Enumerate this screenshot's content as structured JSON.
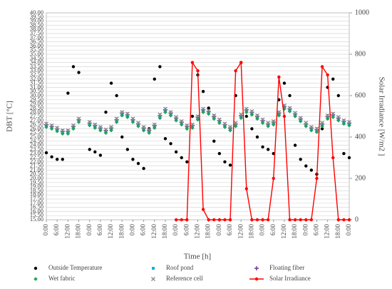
{
  "chart_data": {
    "type": "scatter",
    "ylabel": "DBT [°C]",
    "y2label": "Solar Irradiance  [W/m2 ]",
    "xlabel": "Time [h]",
    "x": [
      0,
      3,
      6,
      9,
      12,
      15,
      18,
      21,
      24,
      27,
      30,
      33,
      36,
      39,
      42,
      45,
      48,
      51,
      54,
      57,
      60,
      63,
      66,
      69,
      72,
      75,
      78,
      81,
      84,
      87,
      90,
      93,
      96,
      99,
      102,
      105,
      108,
      111,
      114,
      117,
      120,
      123,
      126,
      129,
      132,
      135,
      138,
      141,
      144,
      147,
      150,
      153,
      156,
      159,
      162,
      165,
      168
    ],
    "xlim": [
      0,
      168
    ],
    "xticks": [
      {
        "value": 0,
        "label": "0:00"
      },
      {
        "value": 6,
        "label": "6:00"
      },
      {
        "value": 12,
        "label": "12:00"
      },
      {
        "value": 18,
        "label": "18:00"
      },
      {
        "value": 24,
        "label": "0:00"
      },
      {
        "value": 30,
        "label": "6:00"
      },
      {
        "value": 36,
        "label": "12:00"
      },
      {
        "value": 42,
        "label": "18:00"
      },
      {
        "value": 48,
        "label": "0:00"
      },
      {
        "value": 54,
        "label": "6:00"
      },
      {
        "value": 60,
        "label": "12:00"
      },
      {
        "value": 66,
        "label": "18:00"
      },
      {
        "value": 72,
        "label": "0:00"
      },
      {
        "value": 78,
        "label": "6:00"
      },
      {
        "value": 84,
        "label": "12:00"
      },
      {
        "value": 90,
        "label": "18:00"
      },
      {
        "value": 96,
        "label": "0:00"
      },
      {
        "value": 102,
        "label": "6:00"
      },
      {
        "value": 108,
        "label": "12:00"
      },
      {
        "value": 114,
        "label": "18:00"
      },
      {
        "value": 120,
        "label": "0:00"
      },
      {
        "value": 126,
        "label": "6:00"
      },
      {
        "value": 132,
        "label": "12:00"
      },
      {
        "value": 138,
        "label": "18:00"
      },
      {
        "value": 144,
        "label": "0:00"
      },
      {
        "value": 150,
        "label": "6:00"
      },
      {
        "value": 156,
        "label": "12:00"
      },
      {
        "value": 162,
        "label": "18:00"
      },
      {
        "value": 168,
        "label": "0:00"
      }
    ],
    "ylim": [
      15,
      40
    ],
    "yticks": [
      {
        "value": 15,
        "label": "15.00"
      },
      {
        "value": 15.5,
        "label": "15.50"
      },
      {
        "value": 16,
        "label": "16.00"
      },
      {
        "value": 16.5,
        "label": "16.50"
      },
      {
        "value": 17,
        "label": "17.00"
      },
      {
        "value": 17.5,
        "label": "17.50"
      },
      {
        "value": 18,
        "label": "18.00"
      },
      {
        "value": 18.5,
        "label": "18.50"
      },
      {
        "value": 19,
        "label": "19.00"
      },
      {
        "value": 19.5,
        "label": "19.50"
      },
      {
        "value": 20,
        "label": "20.00"
      },
      {
        "value": 20.5,
        "label": "20.50"
      },
      {
        "value": 21,
        "label": "21.00"
      },
      {
        "value": 21.5,
        "label": "21.50"
      },
      {
        "value": 22,
        "label": "22.00"
      },
      {
        "value": 22.5,
        "label": "22.50"
      },
      {
        "value": 23,
        "label": "23.00"
      },
      {
        "value": 23.5,
        "label": "23.50"
      },
      {
        "value": 24,
        "label": "24.00"
      },
      {
        "value": 24.5,
        "label": "24.50"
      },
      {
        "value": 25,
        "label": "25.00"
      },
      {
        "value": 25.5,
        "label": "25.50"
      },
      {
        "value": 26,
        "label": "26.00"
      },
      {
        "value": 26.5,
        "label": "26.50"
      },
      {
        "value": 27,
        "label": "27.00"
      },
      {
        "value": 27.5,
        "label": "27.50"
      },
      {
        "value": 28,
        "label": "28.00"
      },
      {
        "value": 28.5,
        "label": "28.50"
      },
      {
        "value": 29,
        "label": "29.00"
      },
      {
        "value": 29.5,
        "label": "29.50"
      },
      {
        "value": 30,
        "label": "30.00"
      },
      {
        "value": 30.5,
        "label": "30.50"
      },
      {
        "value": 31,
        "label": "31.00"
      },
      {
        "value": 31.5,
        "label": "31.50"
      },
      {
        "value": 32,
        "label": "32.00"
      },
      {
        "value": 32.5,
        "label": "32.50"
      },
      {
        "value": 33,
        "label": "33.00"
      },
      {
        "value": 33.5,
        "label": "33.50"
      },
      {
        "value": 34,
        "label": "34.00"
      },
      {
        "value": 34.5,
        "label": "34.50"
      },
      {
        "value": 35,
        "label": "35.00"
      },
      {
        "value": 35.5,
        "label": "35.50"
      },
      {
        "value": 36,
        "label": "36.00"
      },
      {
        "value": 36.5,
        "label": "36.50"
      },
      {
        "value": 37,
        "label": "37.00"
      },
      {
        "value": 37.5,
        "label": "37.50"
      },
      {
        "value": 38,
        "label": "38.00"
      },
      {
        "value": 38.5,
        "label": "38.50"
      },
      {
        "value": 39,
        "label": "39.00"
      },
      {
        "value": 39.5,
        "label": "39.50"
      },
      {
        "value": 40,
        "label": "40.00"
      }
    ],
    "y2lim": [
      0,
      1000
    ],
    "y2ticks": [
      0,
      200,
      400,
      600,
      800,
      1000
    ],
    "grid": true,
    "series": [
      {
        "name": "Outside Temperature",
        "color": "#000000",
        "marker": "circle",
        "values": [
          23.1,
          22.6,
          22.3,
          22.3,
          30.3,
          33.5,
          32.8,
          null,
          23.5,
          23.2,
          22.8,
          28.0,
          31.5,
          30.0,
          25.0,
          23.5,
          22.3,
          21.8,
          21.2,
          26.0,
          32.0,
          33.5,
          24.8,
          24.2,
          23.2,
          22.5,
          22.0,
          27.5,
          32.5,
          30.5,
          28.5,
          24.5,
          23.0,
          22.0,
          21.6,
          30.0,
          34.0,
          27.5,
          26.0,
          25.0,
          23.8,
          23.5,
          23.0,
          29.5,
          31.5,
          30.0,
          24.0,
          22.3,
          21.5,
          21.0,
          20.5,
          26.0,
          31.0,
          32.0,
          30.0,
          23.0,
          22.5
        ]
      },
      {
        "name": "Roof pond",
        "color": "#00b0f0",
        "marker": "square",
        "values": [
          26.4,
          26.2,
          25.9,
          25.6,
          25.6,
          26.2,
          27.0,
          null,
          26.6,
          26.3,
          26.0,
          25.7,
          26.0,
          27.0,
          27.8,
          27.6,
          27.0,
          26.5,
          26.0,
          25.7,
          26.3,
          27.5,
          28.2,
          27.8,
          27.2,
          26.7,
          26.2,
          26.3,
          27.3,
          28.2,
          28.0,
          27.4,
          26.9,
          26.4,
          26.0,
          26.5,
          27.5,
          28.2,
          27.9,
          27.4,
          26.9,
          26.5,
          26.7,
          27.8,
          28.6,
          28.3,
          27.7,
          27.1,
          26.5,
          26.0,
          25.8,
          26.5,
          27.4,
          27.6,
          27.2,
          26.8,
          26.6
        ]
      },
      {
        "name": "Floating fiber",
        "color": "#7030a0",
        "marker": "plus",
        "values": [
          26.5,
          26.3,
          26.0,
          25.7,
          25.7,
          26.3,
          27.1,
          null,
          26.7,
          26.4,
          26.1,
          25.8,
          26.1,
          27.1,
          27.9,
          27.7,
          27.1,
          26.6,
          26.1,
          25.8,
          26.4,
          27.6,
          28.3,
          27.9,
          27.3,
          26.8,
          26.3,
          26.4,
          27.4,
          28.3,
          28.1,
          27.5,
          27.0,
          26.5,
          26.1,
          26.6,
          27.6,
          28.3,
          28.0,
          27.5,
          27.0,
          26.6,
          26.8,
          27.9,
          28.7,
          28.4,
          27.8,
          27.2,
          26.6,
          26.1,
          25.9,
          26.6,
          27.5,
          27.7,
          27.3,
          26.9,
          26.7
        ]
      },
      {
        "name": "Wet fabric",
        "color": "#1fa35a",
        "marker": "diamond",
        "values": [
          26.2,
          26.0,
          25.7,
          25.4,
          25.4,
          26.0,
          26.8,
          null,
          26.4,
          26.1,
          25.8,
          25.5,
          25.8,
          26.8,
          27.6,
          27.4,
          26.8,
          26.3,
          25.8,
          25.5,
          26.1,
          27.3,
          28.0,
          27.6,
          27.0,
          26.5,
          26.0,
          26.1,
          27.1,
          28.0,
          27.8,
          27.2,
          26.7,
          26.2,
          25.8,
          26.3,
          27.3,
          28.0,
          27.7,
          27.2,
          26.7,
          26.3,
          26.5,
          27.6,
          28.4,
          28.1,
          27.5,
          26.9,
          26.3,
          25.8,
          25.6,
          26.3,
          27.2,
          27.4,
          27.0,
          26.6,
          26.4
        ]
      },
      {
        "name": "Reference cell",
        "color": "#8c8c8c",
        "marker": "cross",
        "values": [
          26.6,
          26.4,
          26.1,
          25.8,
          25.8,
          26.4,
          27.2,
          null,
          26.8,
          26.5,
          26.2,
          25.9,
          26.2,
          27.2,
          28.0,
          27.8,
          27.2,
          26.7,
          26.2,
          25.9,
          26.5,
          27.7,
          28.4,
          28.0,
          27.4,
          26.9,
          26.4,
          26.5,
          27.5,
          28.4,
          28.2,
          27.6,
          27.1,
          26.6,
          26.2,
          26.7,
          27.7,
          28.4,
          28.1,
          27.6,
          27.1,
          26.7,
          26.9,
          28.0,
          28.8,
          28.5,
          27.9,
          27.3,
          26.7,
          26.2,
          26.0,
          26.7,
          27.6,
          27.8,
          27.4,
          27.0,
          26.8
        ]
      },
      {
        "name": "Solar Irradiance",
        "color": "#ff0000",
        "marker": "circle",
        "line": true,
        "axis": "y2",
        "values": [
          null,
          null,
          null,
          null,
          null,
          null,
          null,
          null,
          null,
          null,
          null,
          null,
          null,
          null,
          null,
          null,
          null,
          null,
          null,
          null,
          null,
          null,
          null,
          null,
          0,
          0,
          0,
          760,
          720,
          50,
          0,
          0,
          0,
          0,
          0,
          720,
          760,
          150,
          0,
          0,
          0,
          0,
          200,
          690,
          500,
          0,
          0,
          0,
          0,
          0,
          200,
          740,
          700,
          300,
          0,
          0,
          0
        ]
      }
    ]
  }
}
